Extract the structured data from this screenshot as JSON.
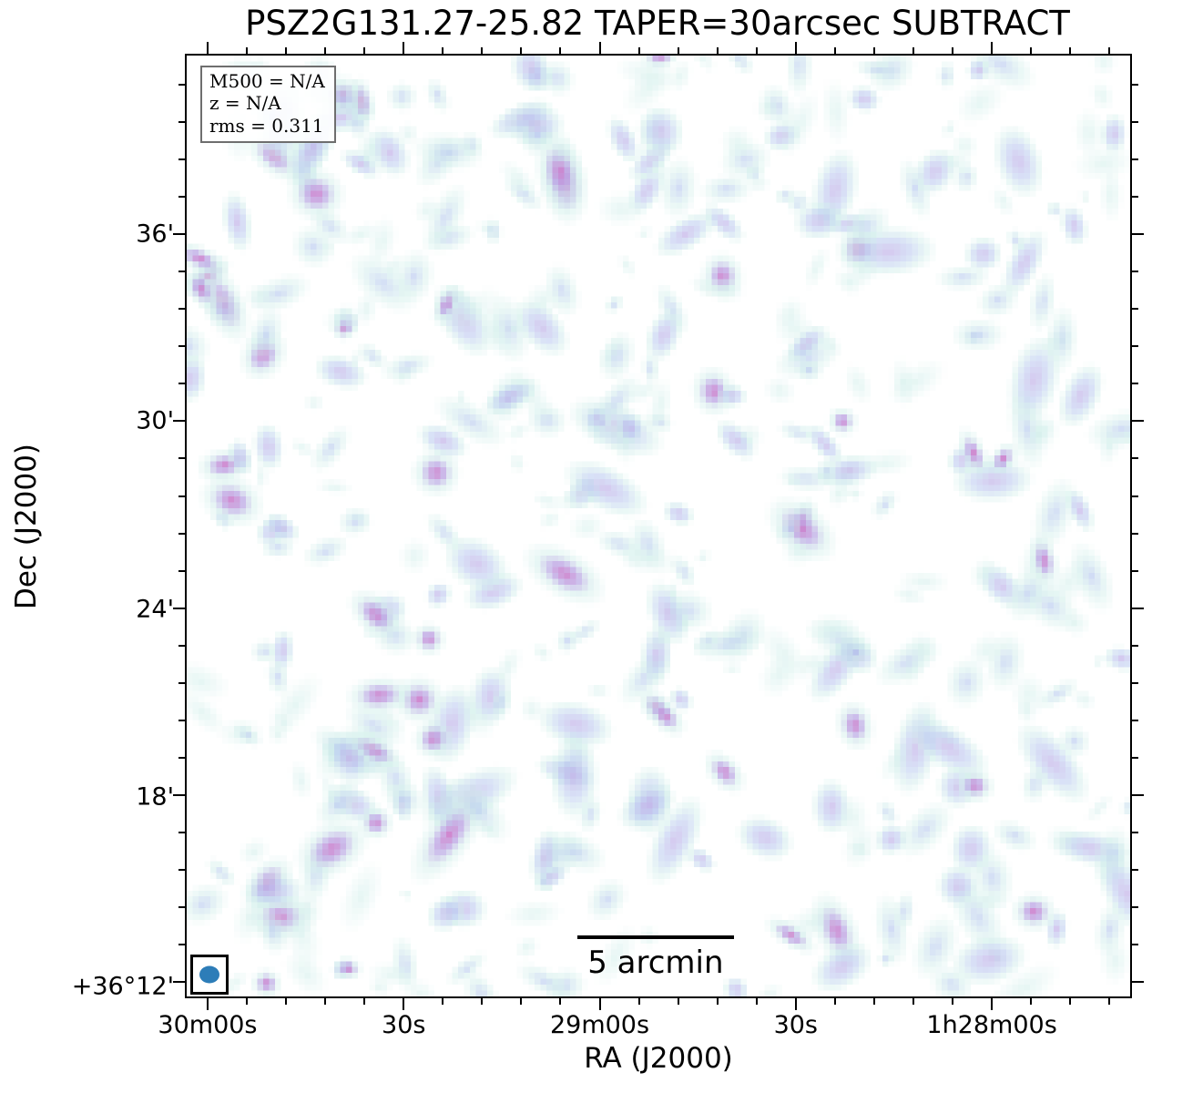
{
  "chart_data": {
    "type": "heatmap",
    "title": "PSZ2G131.27-25.82 TAPER=30arcsec SUBTRACT",
    "description": "Radio continuum residual noise map (source-subtracted, 30 arcsec taper) shown as faint cyan/blue/magenta blobs on white",
    "xlabel": "RA (J2000)",
    "ylabel": "Dec (J2000)",
    "x_axis": {
      "label": "RA (J2000)",
      "major_labels": [
        "30m00s",
        "30s",
        "29m00s",
        "30s",
        "1h28m00s"
      ],
      "major_fractions": [
        0.024,
        0.231,
        0.438,
        0.645,
        0.852
      ],
      "minors_per_interval": 5,
      "direction": "RA increases to the left"
    },
    "y_axis": {
      "label": "Dec (J2000)",
      "major_labels": [
        "36'",
        "30'",
        "24'",
        "18'",
        "+36°12'"
      ],
      "major_fractions": [
        0.191,
        0.389,
        0.588,
        0.787,
        0.987
      ],
      "minors_per_interval": 5,
      "range_note": "Dec from +36°12' (bottom) to above +36°36' (top)"
    },
    "annotation_lines": [
      "M500 = N/A",
      "z = N/A",
      "rms = 0.311"
    ],
    "annotations": {
      "M500": "N/A",
      "z": "N/A",
      "rms": "0.311"
    },
    "scalebar": {
      "label": "5 arcmin",
      "x_center_fraction": 0.497,
      "y_fraction": 0.933,
      "length_fraction": 0.166
    },
    "beam": {
      "shape": "ellipse",
      "color": "#2d7db8"
    },
    "colormap": {
      "background": "#ffffff",
      "halo": "208,238,234",
      "mid": "178,195,238",
      "lavender": "186,165,228",
      "core": "204,120,200"
    },
    "noise": {
      "seed": 1337,
      "blob_count": 470,
      "grid": 160
    }
  }
}
